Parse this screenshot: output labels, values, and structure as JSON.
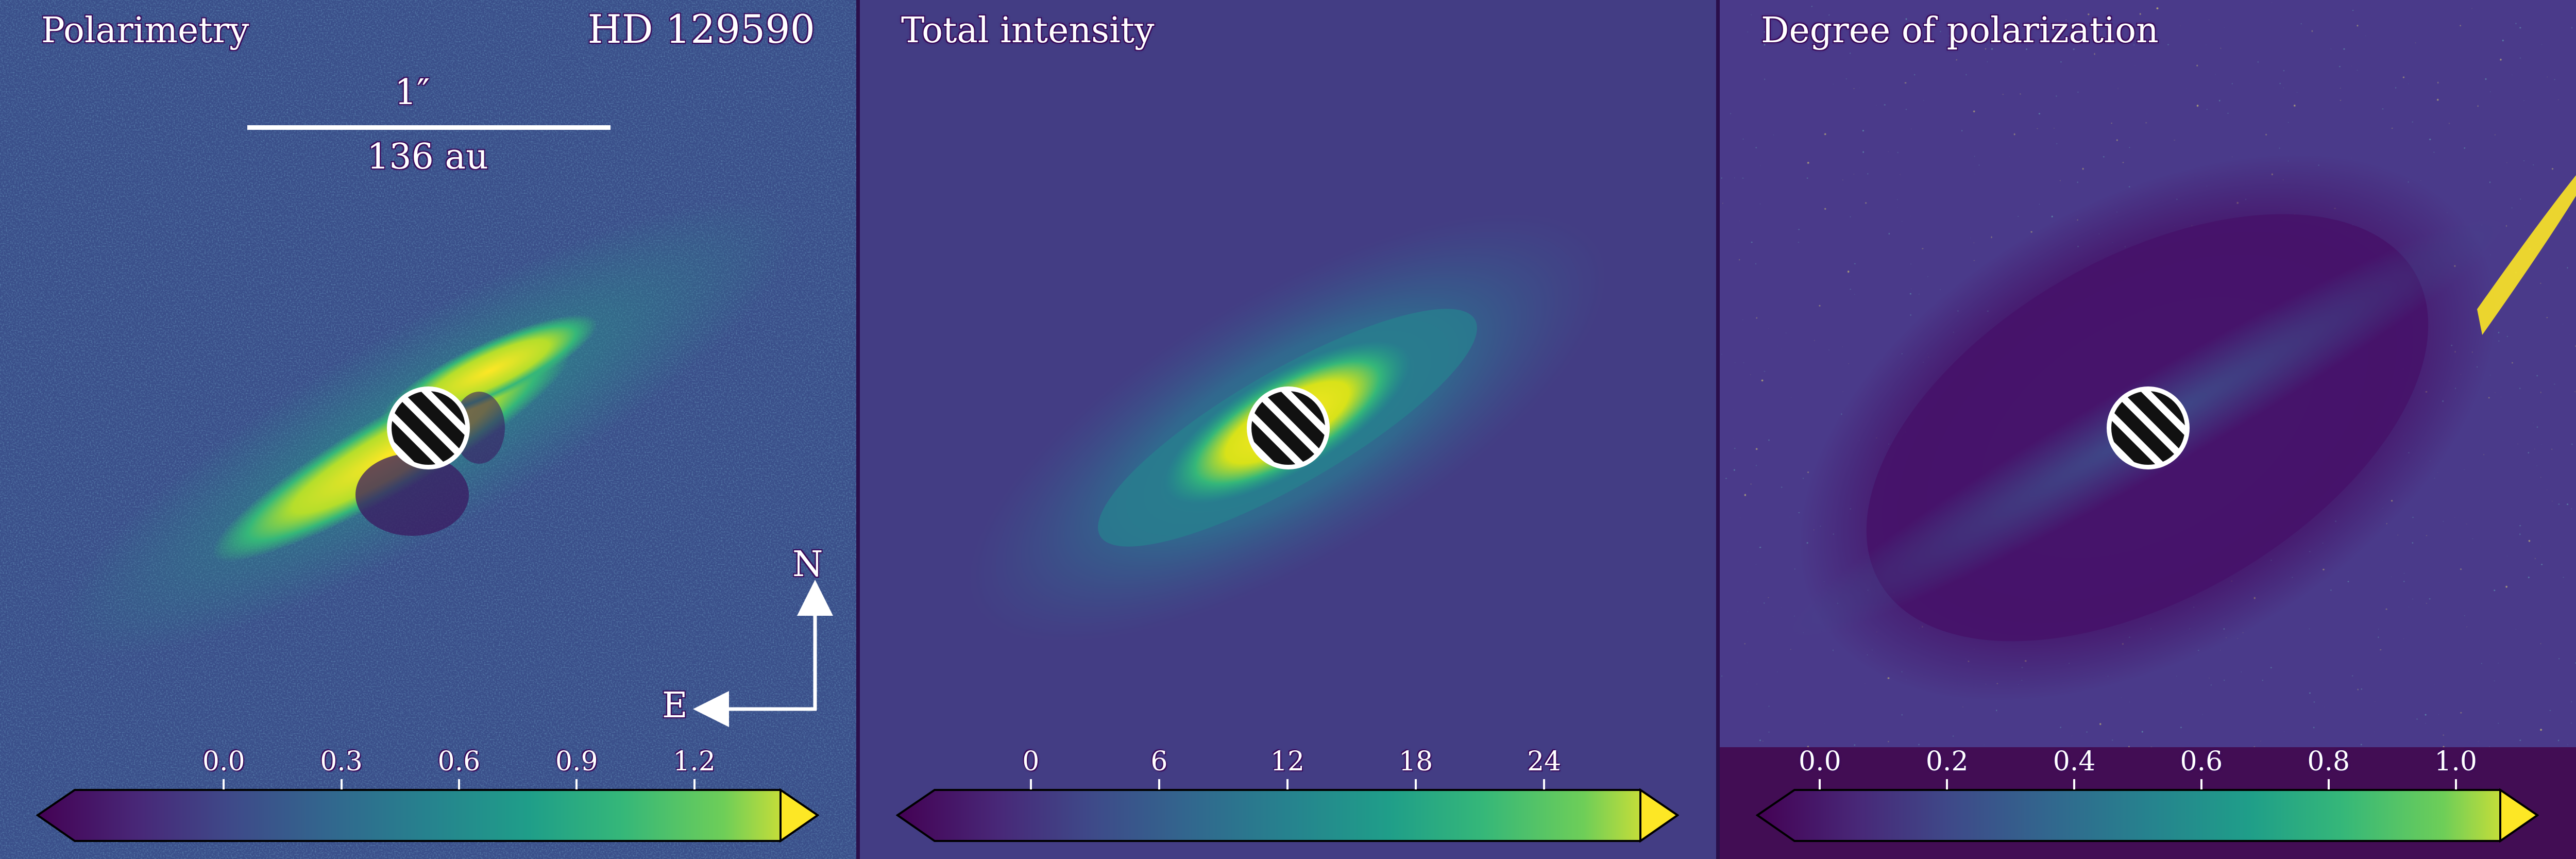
{
  "panels": [
    {
      "title": "Polarimetry",
      "target": "HD 129590",
      "scalebar": {
        "angular": "1″",
        "physical": "136 au"
      },
      "compass": {
        "north": "N",
        "east": "E"
      },
      "colorbar": {
        "ticks": [
          "0.0",
          "0.3",
          "0.6",
          "0.9",
          "1.2"
        ],
        "tick_values": [
          0.0,
          0.3,
          0.6,
          0.9,
          1.2
        ],
        "range": [
          -0.38,
          1.42
        ]
      }
    },
    {
      "title": "Total intensity",
      "colorbar": {
        "ticks": [
          "0",
          "6",
          "12",
          "18",
          "24"
        ],
        "tick_values": [
          0,
          6,
          12,
          18,
          24
        ],
        "range": [
          -4.5,
          28.5
        ]
      }
    },
    {
      "title": "Degree of polarization",
      "colorbar": {
        "ticks": [
          "0.0",
          "0.2",
          "0.4",
          "0.6",
          "0.8",
          "1.0"
        ],
        "tick_values": [
          0.0,
          0.2,
          0.4,
          0.6,
          0.8,
          1.0
        ],
        "range": [
          -0.04,
          1.07
        ]
      }
    }
  ],
  "colormap": "viridis",
  "colors": {
    "bg_dark": "#440154",
    "bg_mid": "#3b528b",
    "disk": "#fde725",
    "text_outline": "#3a0a5a"
  }
}
